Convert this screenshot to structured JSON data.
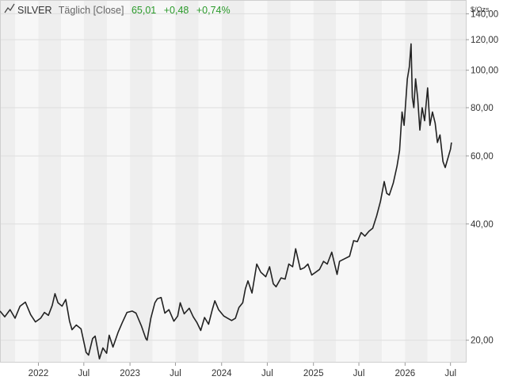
{
  "header": {
    "icon": "line-chart-icon",
    "symbol": "SILVER",
    "period": "Täglich [Close]",
    "last": "65,01",
    "change": "+0,48",
    "change_pct": "+0,74%",
    "change_color": "#2a9a2a"
  },
  "colors": {
    "line": "#222222",
    "band_dark": "#eeeeee",
    "band_light": "#f7f7f7",
    "grid": "#dddddd",
    "text": "#333333"
  },
  "chart_data": {
    "type": "line",
    "title": "SILVER Täglich [Close]",
    "unit_label": "$/Ozs",
    "y_scale": "log",
    "ylim": [
      17.5,
      152
    ],
    "xlim": [
      "2021-08-01",
      "2026-08-31"
    ],
    "y_ticks": [
      {
        "value": 20,
        "label": "20,00"
      },
      {
        "value": 40,
        "label": "40,00"
      },
      {
        "value": 60,
        "label": "60,00"
      },
      {
        "value": 80,
        "label": "80,00"
      },
      {
        "value": 100,
        "label": "100,00"
      },
      {
        "value": 120,
        "label": "120,00"
      },
      {
        "value": 140,
        "label": "140,00"
      }
    ],
    "x_ticks": [
      {
        "date": "2022-01-01",
        "label": "2022"
      },
      {
        "date": "2022-07-01",
        "label": "Jul"
      },
      {
        "date": "2023-01-01",
        "label": "2023"
      },
      {
        "date": "2023-07-01",
        "label": "Jul"
      },
      {
        "date": "2024-01-01",
        "label": "2024"
      },
      {
        "date": "2024-07-01",
        "label": "Jul"
      },
      {
        "date": "2025-01-01",
        "label": "2025"
      },
      {
        "date": "2025-07-01",
        "label": "Jul"
      },
      {
        "date": "2026-01-01",
        "label": "2026"
      },
      {
        "date": "2026-07-01",
        "label": "Jul"
      }
    ],
    "series": [
      {
        "values": [
          [
            "2021-08-01",
            23.8
          ],
          [
            "2021-08-20",
            23.0
          ],
          [
            "2021-09-10",
            24.0
          ],
          [
            "2021-09-30",
            22.8
          ],
          [
            "2021-10-20",
            24.5
          ],
          [
            "2021-11-10",
            25.1
          ],
          [
            "2021-12-01",
            23.3
          ],
          [
            "2021-12-20",
            22.3
          ],
          [
            "2022-01-10",
            22.8
          ],
          [
            "2022-01-25",
            23.6
          ],
          [
            "2022-02-10",
            23.2
          ],
          [
            "2022-02-25",
            24.6
          ],
          [
            "2022-03-08",
            26.4
          ],
          [
            "2022-03-20",
            25.0
          ],
          [
            "2022-04-05",
            24.5
          ],
          [
            "2022-04-20",
            25.5
          ],
          [
            "2022-05-05",
            22.4
          ],
          [
            "2022-05-15",
            21.3
          ],
          [
            "2022-06-01",
            21.9
          ],
          [
            "2022-06-20",
            21.4
          ],
          [
            "2022-07-10",
            18.6
          ],
          [
            "2022-07-20",
            18.3
          ],
          [
            "2022-08-05",
            20.2
          ],
          [
            "2022-08-15",
            20.5
          ],
          [
            "2022-09-01",
            17.9
          ],
          [
            "2022-09-15",
            19.1
          ],
          [
            "2022-09-30",
            18.5
          ],
          [
            "2022-10-10",
            20.6
          ],
          [
            "2022-10-25",
            19.2
          ],
          [
            "2022-11-15",
            21.0
          ],
          [
            "2022-12-01",
            22.2
          ],
          [
            "2022-12-20",
            23.6
          ],
          [
            "2023-01-10",
            23.8
          ],
          [
            "2023-01-25",
            23.5
          ],
          [
            "2023-02-15",
            21.8
          ],
          [
            "2023-03-05",
            20.2
          ],
          [
            "2023-03-10",
            20.0
          ],
          [
            "2023-03-25",
            22.8
          ],
          [
            "2023-04-10",
            25.0
          ],
          [
            "2023-04-20",
            25.6
          ],
          [
            "2023-05-05",
            25.8
          ],
          [
            "2023-05-20",
            23.5
          ],
          [
            "2023-06-05",
            24.0
          ],
          [
            "2023-06-25",
            22.4
          ],
          [
            "2023-07-10",
            23.1
          ],
          [
            "2023-07-20",
            25.0
          ],
          [
            "2023-08-05",
            23.4
          ],
          [
            "2023-08-25",
            24.2
          ],
          [
            "2023-09-10",
            23.0
          ],
          [
            "2023-09-25",
            22.2
          ],
          [
            "2023-10-10",
            21.2
          ],
          [
            "2023-10-25",
            22.9
          ],
          [
            "2023-11-10",
            22.0
          ],
          [
            "2023-11-25",
            24.0
          ],
          [
            "2023-12-05",
            25.3
          ],
          [
            "2023-12-20",
            24.0
          ],
          [
            "2024-01-10",
            23.1
          ],
          [
            "2024-01-25",
            22.8
          ],
          [
            "2024-02-10",
            22.5
          ],
          [
            "2024-02-25",
            22.8
          ],
          [
            "2024-03-10",
            24.3
          ],
          [
            "2024-03-25",
            25.0
          ],
          [
            "2024-04-05",
            27.2
          ],
          [
            "2024-04-15",
            28.5
          ],
          [
            "2024-05-01",
            26.5
          ],
          [
            "2024-05-20",
            31.5
          ],
          [
            "2024-06-05",
            30.0
          ],
          [
            "2024-06-25",
            29.2
          ],
          [
            "2024-07-10",
            31.0
          ],
          [
            "2024-07-25",
            28.0
          ],
          [
            "2024-08-05",
            27.5
          ],
          [
            "2024-08-25",
            29.0
          ],
          [
            "2024-09-10",
            28.8
          ],
          [
            "2024-09-25",
            31.5
          ],
          [
            "2024-10-10",
            31.0
          ],
          [
            "2024-10-22",
            34.5
          ],
          [
            "2024-11-10",
            30.5
          ],
          [
            "2024-11-25",
            30.8
          ],
          [
            "2024-12-10",
            31.5
          ],
          [
            "2024-12-25",
            29.5
          ],
          [
            "2025-01-10",
            30.0
          ],
          [
            "2025-01-25",
            30.5
          ],
          [
            "2025-02-10",
            32.0
          ],
          [
            "2025-02-25",
            31.5
          ],
          [
            "2025-03-15",
            33.8
          ],
          [
            "2025-04-05",
            29.6
          ],
          [
            "2025-04-15",
            32.0
          ],
          [
            "2025-05-05",
            32.5
          ],
          [
            "2025-05-25",
            33.0
          ],
          [
            "2025-06-10",
            36.2
          ],
          [
            "2025-06-25",
            36.0
          ],
          [
            "2025-07-10",
            38.0
          ],
          [
            "2025-07-25",
            37.2
          ],
          [
            "2025-08-10",
            38.3
          ],
          [
            "2025-08-25",
            39.0
          ],
          [
            "2025-09-10",
            42.0
          ],
          [
            "2025-09-25",
            45.8
          ],
          [
            "2025-10-10",
            51.5
          ],
          [
            "2025-10-20",
            48.0
          ],
          [
            "2025-10-30",
            47.5
          ],
          [
            "2025-11-15",
            51.0
          ],
          [
            "2025-11-30",
            56.5
          ],
          [
            "2025-12-10",
            62.0
          ],
          [
            "2025-12-20",
            78.0
          ],
          [
            "2025-12-28",
            72.0
          ],
          [
            "2026-01-10",
            95.0
          ],
          [
            "2026-01-18",
            102.0
          ],
          [
            "2026-01-25",
            117.0
          ],
          [
            "2026-01-30",
            85.0
          ],
          [
            "2026-02-05",
            80.0
          ],
          [
            "2026-02-12",
            95.0
          ],
          [
            "2026-02-20",
            85.0
          ],
          [
            "2026-03-01",
            70.0
          ],
          [
            "2026-03-10",
            80.0
          ],
          [
            "2026-03-20",
            74.0
          ],
          [
            "2026-04-01",
            90.0
          ],
          [
            "2026-04-10",
            72.0
          ],
          [
            "2026-04-20",
            78.0
          ],
          [
            "2026-05-01",
            73.0
          ],
          [
            "2026-05-10",
            65.0
          ],
          [
            "2026-05-20",
            68.0
          ],
          [
            "2026-06-01",
            58.0
          ],
          [
            "2026-06-10",
            56.0
          ],
          [
            "2026-06-20",
            59.0
          ],
          [
            "2026-07-01",
            62.5
          ],
          [
            "2026-07-05",
            65.01
          ]
        ]
      }
    ]
  }
}
